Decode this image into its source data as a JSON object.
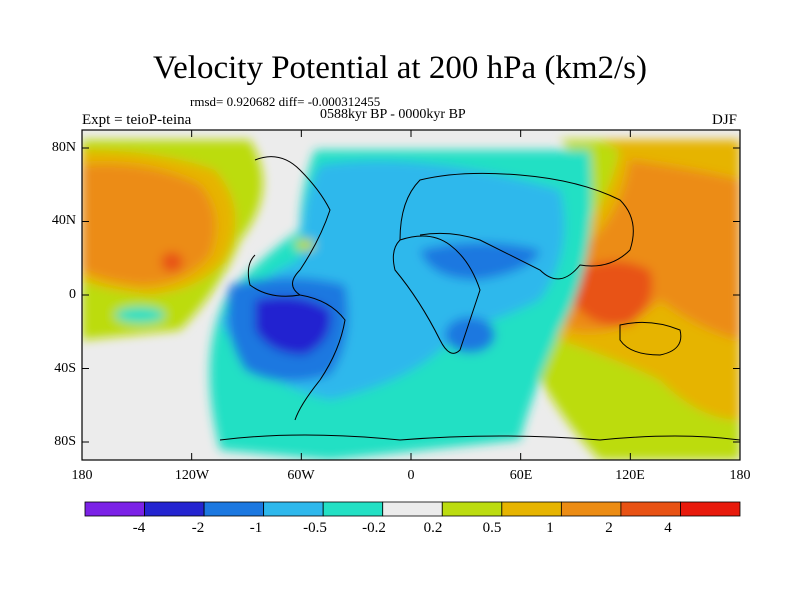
{
  "header": {
    "title": "Velocity Potential at 200 hPa (km2/s)",
    "stats": "rmsd= 0.920682 diff= -0.000312455",
    "period": "0588kyr BP - 0000kyr BP",
    "experiment": "Expt = teioP-teina",
    "season": "DJF"
  },
  "map": {
    "lat_labels": [
      "80N",
      "40N",
      "0",
      "40S",
      "80S"
    ],
    "lon_labels": [
      "180",
      "120W",
      "60W",
      "0",
      "60E",
      "120E",
      "180"
    ]
  },
  "colorbar": {
    "labels": [
      "-4",
      "-2",
      "-1",
      "-0.5",
      "-0.2",
      "0.2",
      "0.5",
      "1",
      "2",
      "4"
    ],
    "colors": [
      "#7b22e6",
      "#2424d0",
      "#1c78e0",
      "#2eb8ec",
      "#23e0c4",
      "#ececec",
      "#bcdc10",
      "#e6b400",
      "#ec8c14",
      "#e85214",
      "#e81a0c"
    ]
  }
}
